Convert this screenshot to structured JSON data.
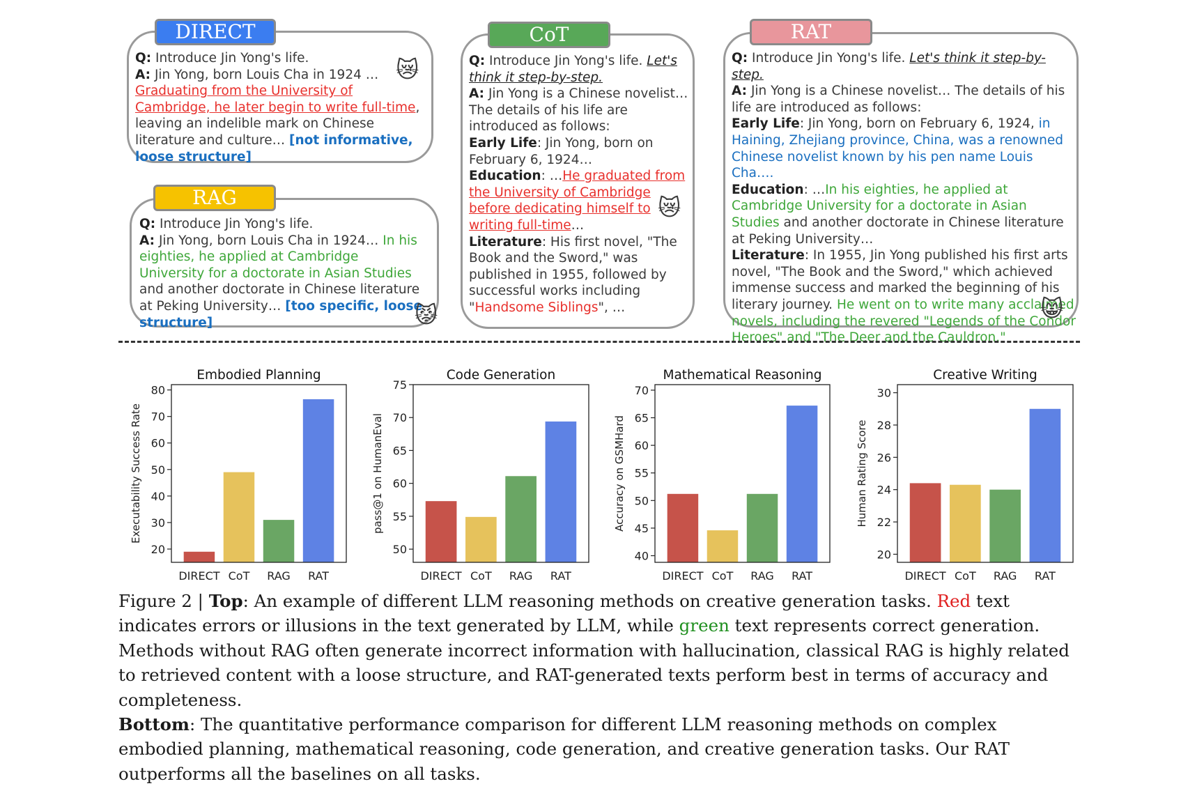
{
  "top": {
    "direct": {
      "tag": "DIRECT",
      "q_label": "Q:",
      "question": "Introduce Jin Yong's life.",
      "a_label": "A:",
      "answer_intro": "Jin Yong, born Louis Cha in 1924 …",
      "error_text": "Graduating from the University of Cambridge, he later begin to write full-time",
      "after_error": ", leaving an indelible mark on Chinese literature and culture…",
      "note": "[not informative, loose structure]",
      "emoji": "😿"
    },
    "rag": {
      "tag": "RAG",
      "q_label": "Q:",
      "question": "Introduce Jin Yong's life.",
      "a_label": "A:",
      "answer_intro": "Jin Yong, born Louis Cha in 1924…",
      "correct_text": "In his eighties, he applied at Cambridge University for a doctorate in Asian Studies",
      "after_correct": "and another doctorate in Chinese literature at Peking University…",
      "note": "[too specific, loose structure]",
      "emoji": "😾"
    },
    "cot": {
      "tag": "CoT",
      "q_label": "Q:",
      "question": "Introduce Jin Yong's life.",
      "prompt": "Let's think it step-by-step.",
      "a_label": "A:",
      "answer_intro": "Jin Yong is a Chinese novelist… The details of his life are introduced as follows:",
      "early_label": "Early Life",
      "early_text": ": Jin Yong, born on February 6, 1924…",
      "edu_label": "Education",
      "edu_prefix": ": …",
      "edu_error": "He graduated from the University of Cambridge before dedicating himself to writing full-time",
      "edu_suffix": "…",
      "lit_label": "Literature",
      "lit_text": ": His first novel, \"The Book and the Sword,\" was published in 1955, followed by successful works including \"",
      "lit_error": "Handsome Siblings",
      "lit_suffix": "\", …",
      "emoji": "😿"
    },
    "rat": {
      "tag": "RAT",
      "q_label": "Q:",
      "question": "Introduce Jin Yong's life.",
      "prompt": "Let's think it step-by-step.",
      "a_label": "A:",
      "answer_intro": "Jin Yong is a Chinese novelist… The details of his life are introduced as follows:",
      "early_label": "Early Life",
      "early_text": ": Jin Yong, born on February 6, 1924,",
      "early_blue": "in Haining, Zhejiang province, China, was a renowned Chinese novelist known by his pen name Louis Cha….",
      "edu_label": "Education",
      "edu_prefix": ": …",
      "edu_green": "In his eighties, he applied at Cambridge University for a doctorate in Asian Studies",
      "edu_suffix": "and another doctorate in Chinese literature at Peking University…",
      "lit_label": "Literature",
      "lit_text": ": In 1955, Jin Yong published his first arts novel, \"The Book and the Sword,\" which achieved immense success and marked the beginning of his literary journey.",
      "lit_green": "He went on to write many acclaimed novels, including the revered \"Legends of the Condor Heroes\" and \"The Deer and the Cauldron.\"",
      "emoji": "😸"
    }
  },
  "colors": {
    "direct": "#c6534a",
    "cot": "#e6c25c",
    "rag": "#6aa664",
    "rat": "#5e82e4",
    "tag_direct": "#3b7df0",
    "tag_cot": "#58a858",
    "tag_rag": "#f6c200",
    "tag_rat": "#e8969c"
  },
  "chart_data": [
    {
      "type": "bar",
      "title": "Embodied Planning",
      "categories": [
        "DIRECT",
        "CoT",
        "RAG",
        "RAT"
      ],
      "values": [
        19,
        49,
        31,
        76.5
      ],
      "ylabel": "Executability Success Rate",
      "ylim": [
        15,
        82
      ],
      "yticks": [
        20,
        30,
        40,
        50,
        60,
        70,
        80
      ]
    },
    {
      "type": "bar",
      "title": "Code Generation",
      "categories": [
        "DIRECT",
        "CoT",
        "RAG",
        "RAT"
      ],
      "values": [
        57.3,
        54.9,
        61.1,
        69.4
      ],
      "ylabel": "pass@1 on HumanEval",
      "ylim": [
        48,
        75
      ],
      "yticks": [
        50,
        55,
        60,
        65,
        70,
        75
      ]
    },
    {
      "type": "bar",
      "title": "Mathematical Reasoning",
      "categories": [
        "DIRECT",
        "CoT",
        "RAG",
        "RAT"
      ],
      "values": [
        51.2,
        44.6,
        51.2,
        67.2
      ],
      "ylabel": "Accuracy on GSMHard",
      "ylim": [
        38.8,
        71
      ],
      "yticks": [
        40,
        45,
        50,
        55,
        60,
        65,
        70
      ]
    },
    {
      "type": "bar",
      "title": "Creative Writing",
      "categories": [
        "DIRECT",
        "CoT",
        "RAG",
        "RAT"
      ],
      "values": [
        24.4,
        24.3,
        24.0,
        29.0
      ],
      "ylabel": "Human Rating Score",
      "ylim": [
        19.5,
        30.5
      ],
      "yticks": [
        20,
        22,
        24,
        26,
        28,
        30
      ]
    }
  ],
  "caption": {
    "fig_label": "Figure 2 | ",
    "top_label": "Top",
    "top_text": ": An example of different LLM reasoning methods on creative generation tasks. ",
    "red_word": "Red",
    "mid_text": " text indicates errors or illusions in the text generated by LLM, while ",
    "green_word": "green",
    "after_green": " text represents correct generation. Methods without RAG often generate incorrect information with hallucination, classical RAG is highly related to retrieved content with a loose structure, and RAT-generated texts perform best in terms of accuracy and completeness.",
    "bottom_label": "Bottom",
    "bottom_text": ": The quantitative performance comparison for different LLM reasoning methods on complex embodied planning, mathematical reasoning, code generation, and creative generation tasks. Our RAT outperforms all the baselines on all tasks."
  }
}
